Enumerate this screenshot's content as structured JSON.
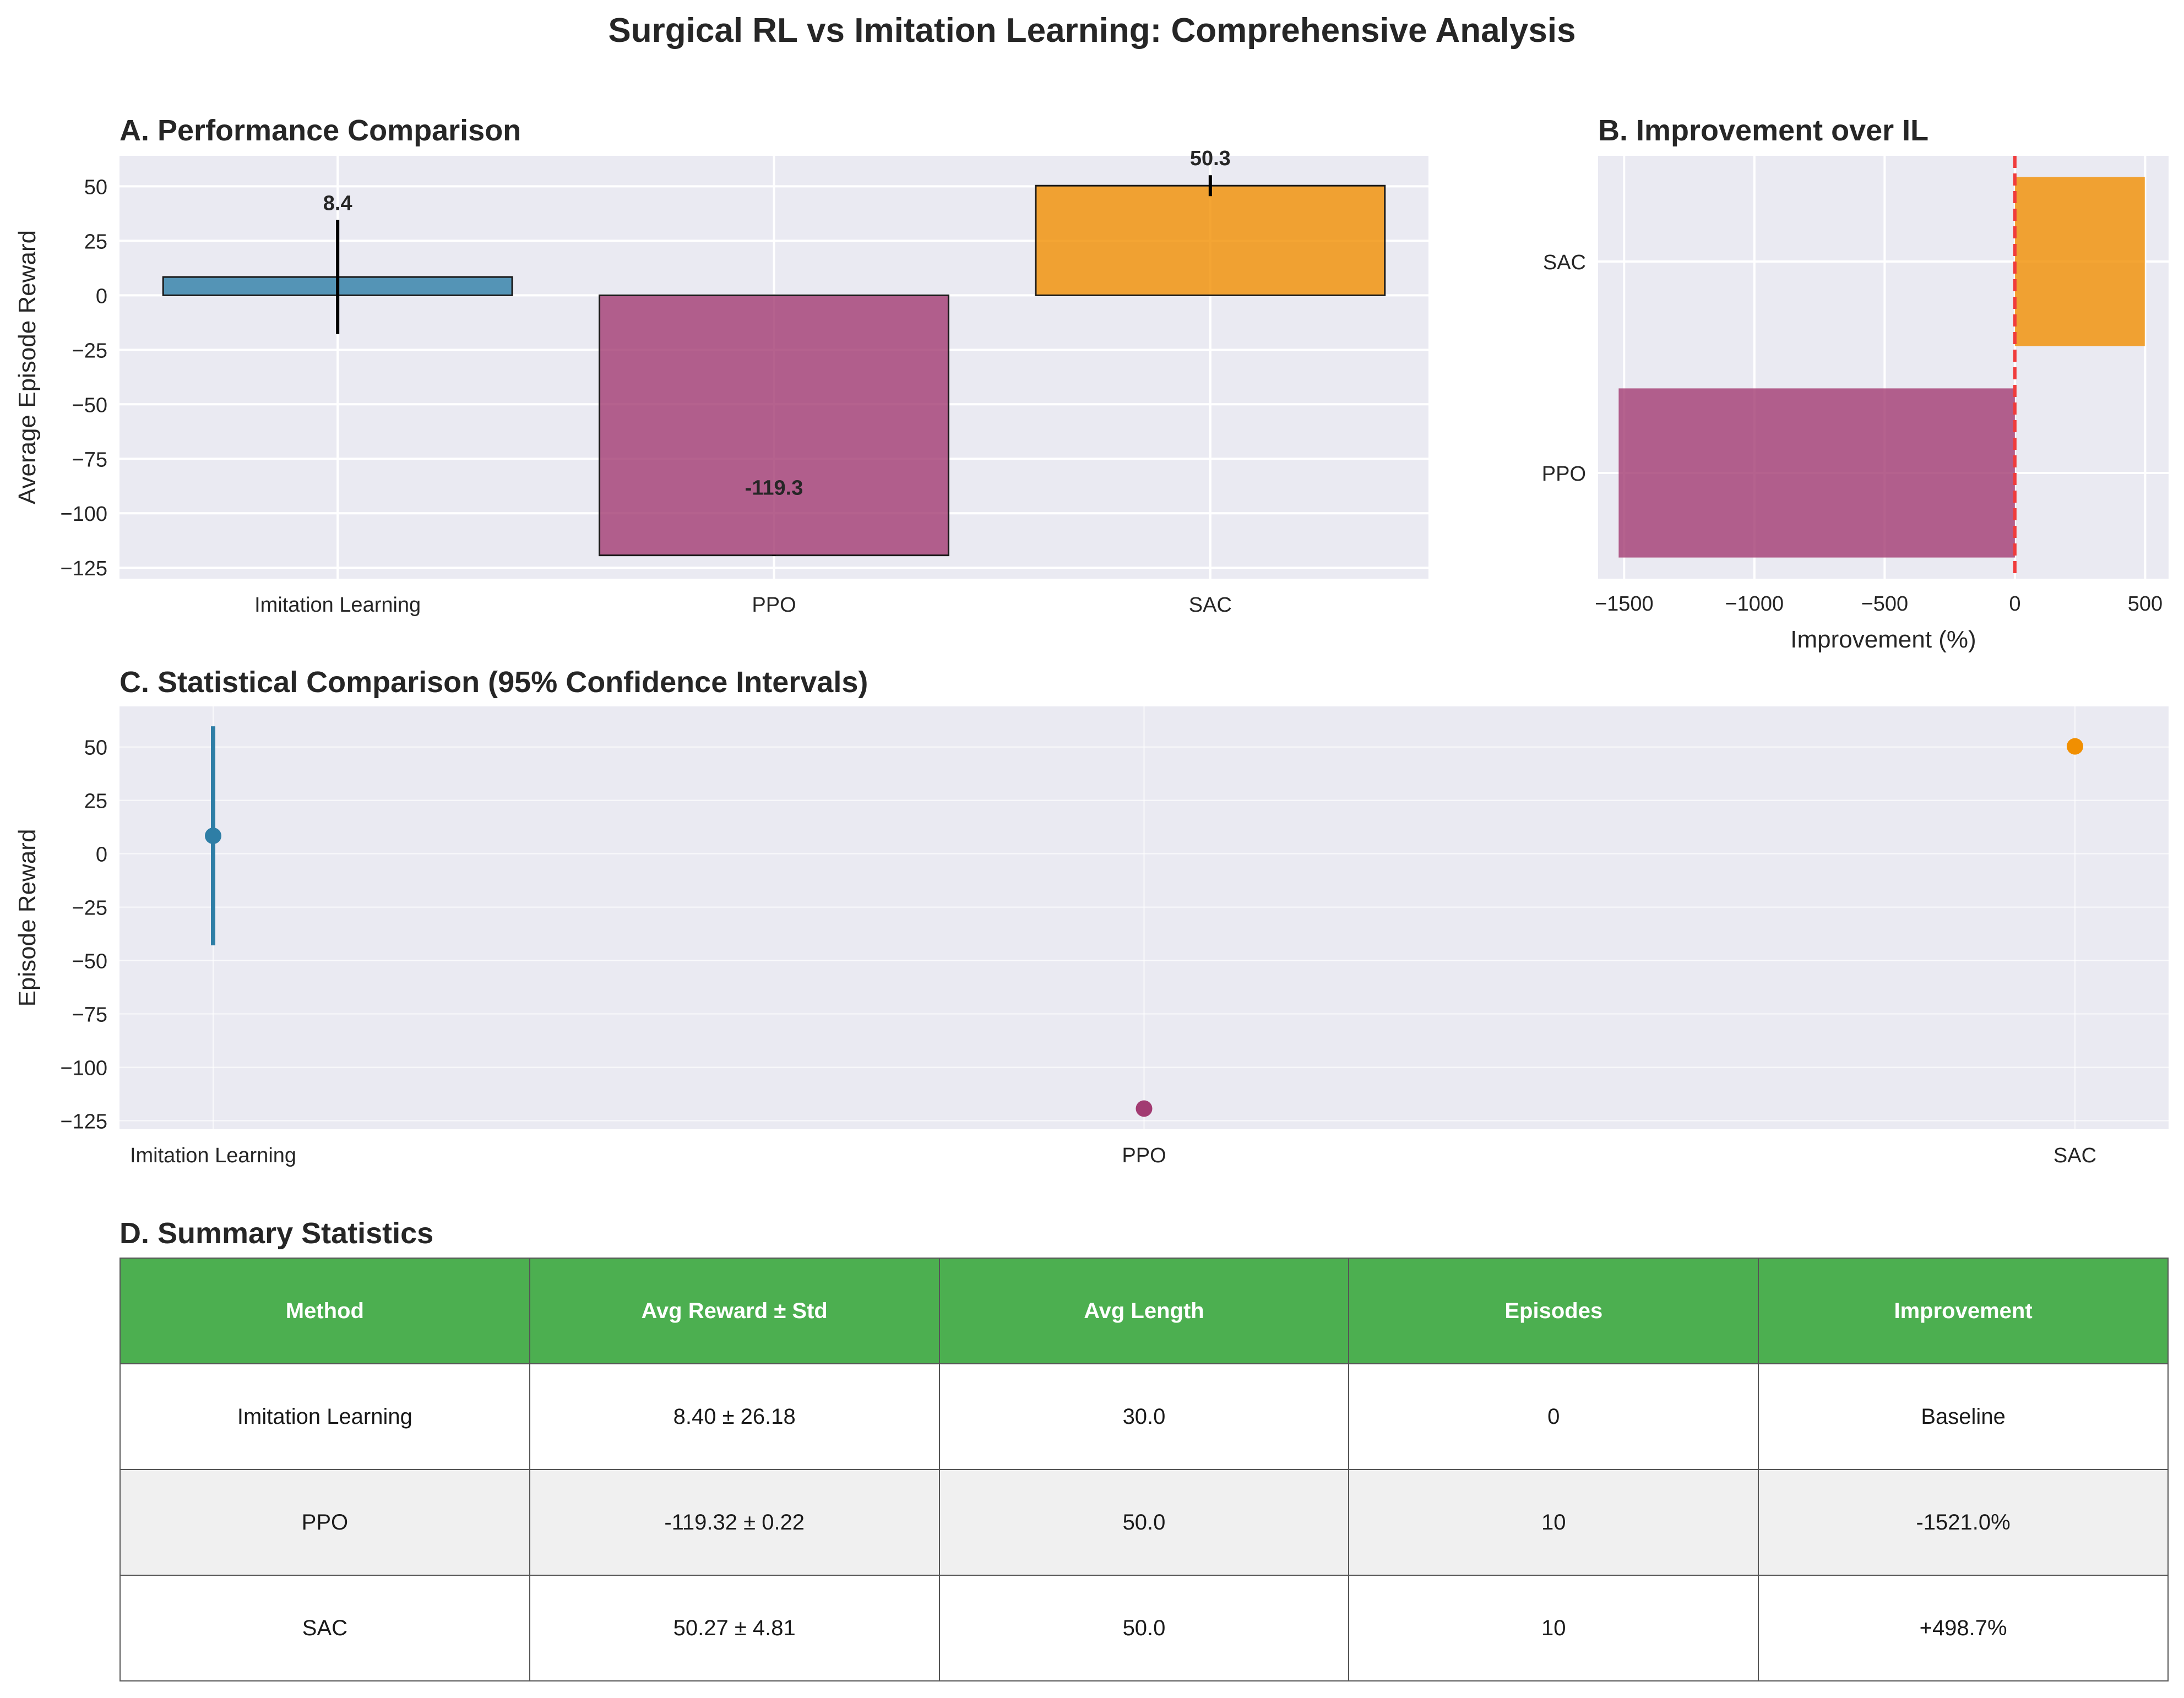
{
  "figure": {
    "title": "Surgical RL vs Imitation Learning: Comprehensive Analysis"
  },
  "colors": {
    "imitation": "#2e7ea6",
    "ppo": "#a23b72",
    "sac": "#f18f01",
    "table_header": "#4caf50",
    "zero_line": "#f03c3c",
    "panel_bg": "#eaeaf2"
  },
  "chart_data": [
    {
      "panel": "A",
      "type": "bar",
      "title": "A. Performance Comparison",
      "xlabel": "",
      "ylabel": "Average Episode Reward",
      "categories": [
        "Imitation Learning",
        "PPO",
        "SAC"
      ],
      "values": [
        8.4,
        -119.3,
        50.3
      ],
      "errors": [
        26.18,
        0.22,
        4.81
      ],
      "value_labels": [
        "8.4",
        "-119.3",
        "50.3"
      ],
      "ylim": [
        -130,
        64
      ],
      "yticks": [
        50,
        25,
        0,
        -25,
        -50,
        -75,
        -100,
        -125
      ],
      "ytick_labels": [
        "50",
        "25",
        "0",
        "−25",
        "−50",
        "−75",
        "−100",
        "−125"
      ],
      "grid": true
    },
    {
      "panel": "B",
      "type": "bar",
      "orientation": "horizontal",
      "title": "B. Improvement over IL",
      "xlabel": "Improvement (%)",
      "ylabel": "",
      "categories": [
        "PPO",
        "SAC"
      ],
      "values": [
        -1521.0,
        498.7
      ],
      "xlim": [
        -1600,
        590
      ],
      "xticks": [
        -1500,
        -1000,
        -500,
        0,
        500
      ],
      "xtick_labels": [
        "−1500",
        "−1000",
        "−500",
        "0",
        "500"
      ],
      "reference_line": 0,
      "grid": true
    },
    {
      "panel": "C",
      "type": "scatter",
      "title": "C. Statistical Comparison (95% Confidence Intervals)",
      "xlabel": "",
      "ylabel": "Episode Reward",
      "categories": [
        "Imitation Learning",
        "PPO",
        "SAC"
      ],
      "values": [
        8.4,
        -119.32,
        50.27
      ],
      "ci_low": [
        -42.9,
        -119.5,
        50.27
      ],
      "ci_high": [
        59.7,
        -119.1,
        50.27
      ],
      "ylim": [
        -129,
        69
      ],
      "yticks": [
        50,
        25,
        0,
        -25,
        -50,
        -75,
        -100,
        -125
      ],
      "ytick_labels": [
        "50",
        "25",
        "0",
        "−25",
        "−50",
        "−75",
        "−100",
        "−125"
      ],
      "grid": true
    },
    {
      "panel": "D",
      "type": "table",
      "title": "D. Summary Statistics",
      "columns": [
        "Method",
        "Avg Reward ± Std",
        "Avg Length",
        "Episodes",
        "Improvement"
      ],
      "rows": [
        [
          "Imitation Learning",
          "8.40 ± 26.18",
          "30.0",
          "0",
          "Baseline"
        ],
        [
          "PPO",
          "-119.32 ± 0.22",
          "50.0",
          "10",
          "-1521.0%"
        ],
        [
          "SAC",
          "50.27 ± 4.81",
          "50.0",
          "10",
          "+498.7%"
        ]
      ]
    }
  ]
}
